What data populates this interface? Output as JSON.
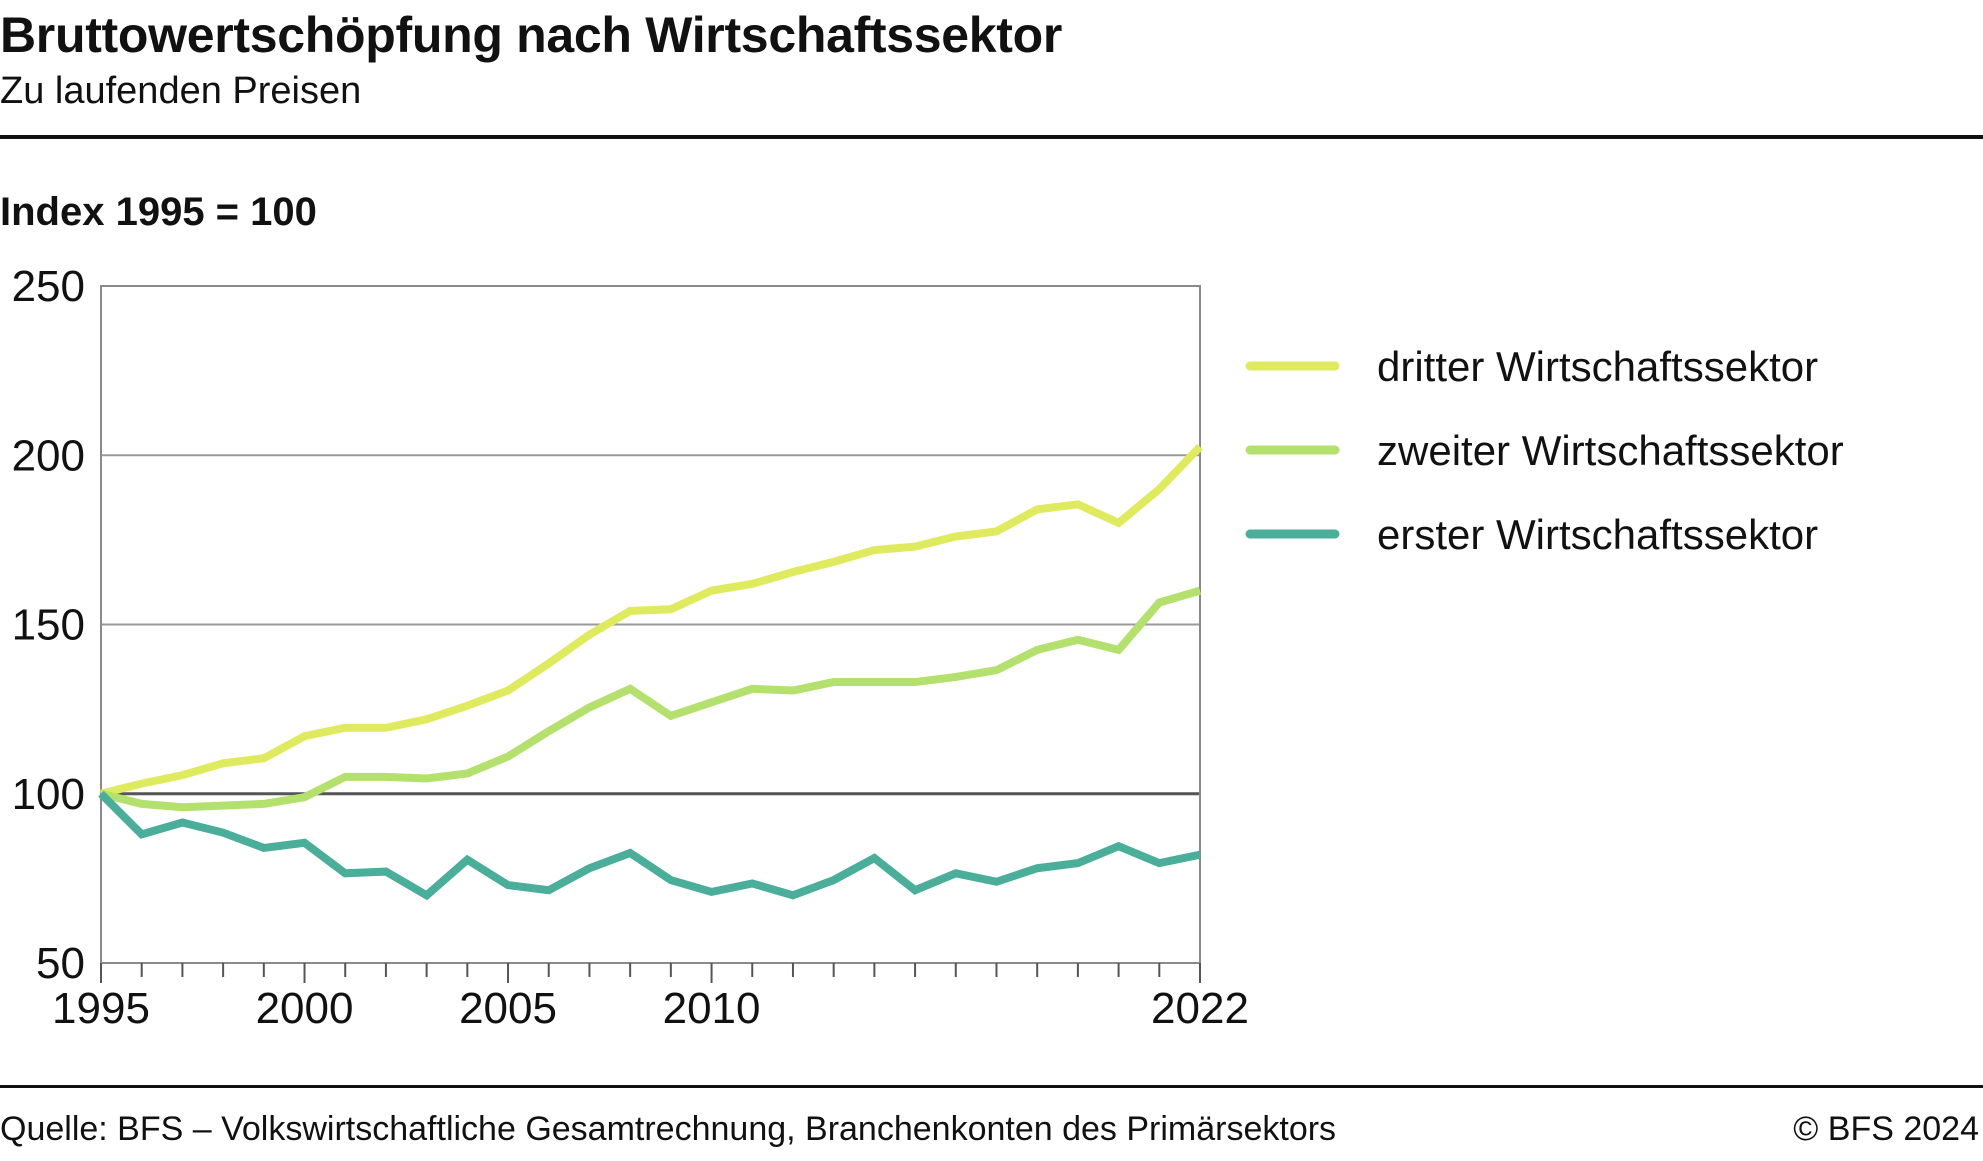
{
  "header": {
    "title": "Bruttowertschöpfung nach Wirtschaftssektor",
    "subtitle": "Zu laufenden Preisen",
    "unit_label": "Index 1995 = 100"
  },
  "footer": {
    "source": "Quelle: BFS – Volkswirtschaftliche Gesamtrechnung, Branchenkonten des Primärsektors",
    "copyright": "© BFS 2024"
  },
  "chart_data": {
    "type": "line",
    "title": "Bruttowertschöpfung nach Wirtschaftssektor",
    "subtitle": "Zu laufenden Preisen",
    "ylabel": "Index 1995 = 100",
    "xlabel": "",
    "ylim": [
      50,
      250
    ],
    "yticks": [
      50,
      100,
      150,
      200,
      250
    ],
    "xlim": [
      1995,
      2022
    ],
    "xtick_labels": [
      1995,
      2000,
      2005,
      2010,
      2022
    ],
    "grid": true,
    "reference_line": 100,
    "legend_position": "right",
    "x": [
      1995,
      1996,
      1997,
      1998,
      1999,
      2000,
      2001,
      2002,
      2003,
      2004,
      2005,
      2006,
      2007,
      2008,
      2009,
      2010,
      2011,
      2012,
      2013,
      2014,
      2015,
      2016,
      2017,
      2018,
      2019,
      2020,
      2021,
      2022
    ],
    "series": [
      {
        "name": "dritter Wirtschaftssektor",
        "color": "#e0ea5e",
        "values": [
          100,
          103,
          105.5,
          109,
          110.5,
          117,
          119.5,
          119.5,
          122,
          126,
          130.5,
          138.5,
          147,
          154,
          154.5,
          160,
          162,
          165.5,
          168.5,
          172,
          173,
          176,
          177.5,
          184,
          185.5,
          180,
          190,
          202.5
        ]
      },
      {
        "name": "zweiter Wirtschaftssektor",
        "color": "#b4e06e",
        "values": [
          100,
          97,
          96,
          96.5,
          97,
          99,
          105,
          105,
          104.5,
          106,
          111,
          118.5,
          125.5,
          131,
          123,
          127,
          131,
          130.5,
          133,
          133,
          133,
          134.5,
          136.5,
          142.5,
          145.5,
          142.5,
          156.5,
          160
        ]
      },
      {
        "name": "erster Wirtschaftssektor",
        "color": "#4aae9b",
        "values": [
          100,
          88,
          91.5,
          88.5,
          84,
          85.5,
          76.5,
          77,
          70,
          80.5,
          73,
          71.5,
          78,
          82.5,
          74.5,
          71,
          73.5,
          70,
          74.5,
          81,
          71.5,
          76.5,
          74,
          78,
          79.5,
          84.5,
          79.5,
          82
        ]
      }
    ]
  }
}
